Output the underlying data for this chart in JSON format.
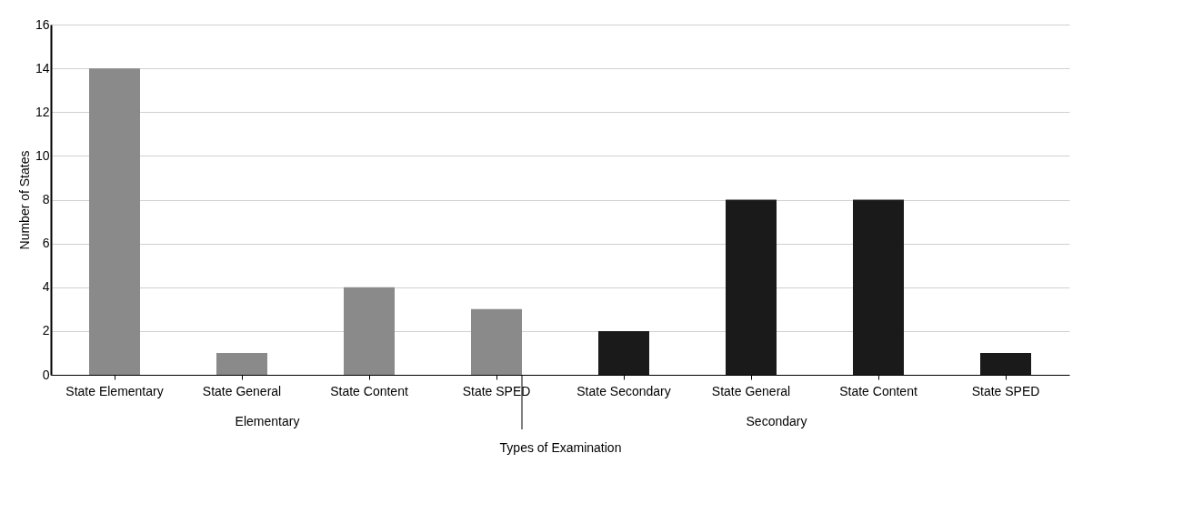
{
  "chart_data": {
    "type": "bar",
    "xlabel": "Types of Examination",
    "ylabel": "Number of States",
    "categories": [
      "State Elementary",
      "State General",
      "State Content",
      "State SPED",
      "State Secondary",
      "State General",
      "State Content",
      "State SPED"
    ],
    "values": [
      14,
      1,
      4,
      3,
      2,
      8,
      8,
      1
    ],
    "colors": [
      "#8a8a8a",
      "#8a8a8a",
      "#8a8a8a",
      "#8a8a8a",
      "#1a1a1a",
      "#1a1a1a",
      "#1a1a1a",
      "#1a1a1a"
    ],
    "ylim": [
      0,
      16
    ],
    "yticks": [
      0,
      2,
      4,
      6,
      8,
      10,
      12,
      14,
      16
    ],
    "grid": "y",
    "annotations": [
      "Elementary",
      "Secondary"
    ]
  }
}
